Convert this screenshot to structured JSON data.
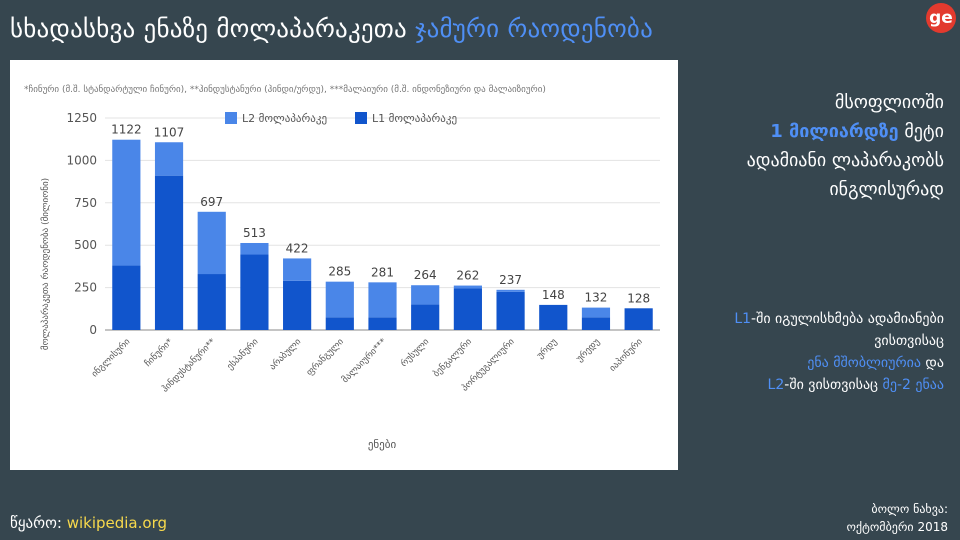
{
  "slide": {
    "title_part1": "სხადასხვა ენაზე მოლაპარაკეთა",
    "title_highlight": "ჯამური რაოდენობა",
    "logo": "ge"
  },
  "side": {
    "line1": "მსოფლიოში",
    "highlight": "1 მილიარდზე",
    "line2_rest": " მეტი",
    "line3": "ადამიანი ლაპარაკობს",
    "line4": "ინგლისურად"
  },
  "note": {
    "l1": "L1",
    "l1_text": "-ში იგულისხმება ადამიანები",
    "line2": "ვისთვისაც",
    "native": "ენა მშობლიურია",
    "and": " და",
    "l2": "L2",
    "l2_text": "-ში ვისთვისაც ",
    "second": "მე-2 ენაა"
  },
  "footer": {
    "source_label": "წყარო: ",
    "source_link": "wikipedia.org",
    "last_view_label": "ბოლო ნახვა:",
    "last_view_date": "ოქტომბერი 2018"
  },
  "colors": {
    "l1": "#1155cc",
    "l2": "#4a86e8",
    "accent": "#4f8ff5",
    "background": "#36464f"
  },
  "chart_data": {
    "type": "bar",
    "stacked": true,
    "footnote": "*ჩინური (მ.შ. სტანდარტული ჩინური), **ჰინდუსტანური (ჰინდი/ურდუ), ***მალაიური (მ.შ. ინდონეზიური და მალაიზიური)",
    "xlabel": "ენები",
    "ylabel": "მოლაპარაკეთა რაოდენობა (მილიონი)",
    "ylim": [
      0,
      1250
    ],
    "yticks": [
      0,
      250,
      500,
      750,
      1000,
      1250
    ],
    "grid": true,
    "legend_position": "top",
    "categories": [
      "ინგლისური",
      "ჩინური*",
      "ჰინდუსტანური**",
      "ესპანური",
      "არაბული",
      "ფრანგული",
      "მალაიური***",
      "რუსული",
      "ბენგალური",
      "პორტუგალიური",
      "ურდუ",
      "ურედუ",
      "იაპონური"
    ],
    "totals": [
      1122,
      1107,
      697,
      513,
      422,
      285,
      281,
      264,
      262,
      237,
      148,
      132,
      128
    ],
    "series": [
      {
        "name": "L1 მოლაპარაკე",
        "values": [
          380,
          910,
          330,
          445,
          290,
          75,
          75,
          150,
          245,
          225,
          148,
          75,
          128
        ]
      },
      {
        "name": "L2 მოლაპარაკე",
        "values": [
          742,
          197,
          367,
          68,
          132,
          210,
          206,
          114,
          17,
          12,
          0,
          57,
          0
        ]
      }
    ]
  }
}
